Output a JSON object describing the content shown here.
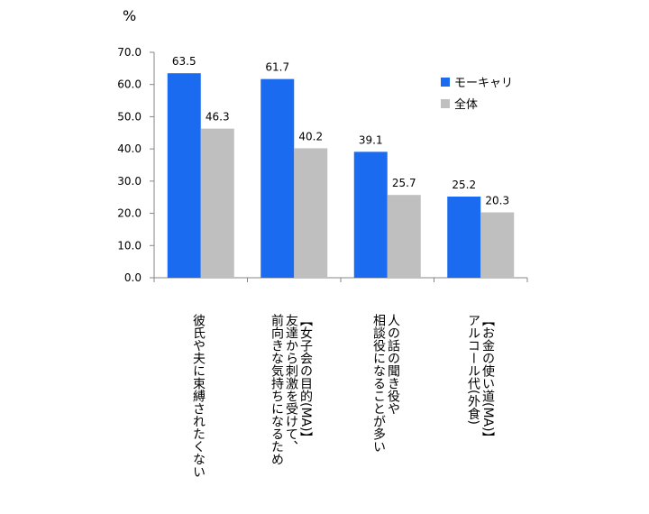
{
  "chart_data": {
    "type": "bar",
    "ylabel": "%",
    "ylim": [
      0,
      70
    ],
    "yticks": [
      "70.0",
      "60.0",
      "50.0",
      "40.0",
      "30.0",
      "20.0",
      "10.0",
      "0.0"
    ],
    "ytick_values": [
      70,
      60,
      50,
      40,
      30,
      20,
      10,
      0
    ],
    "categories": [
      "彼氏や夫に束縛されたくない",
      "【女子会の目的(MA)】\n友達から刺激を受けて、\n前向きな気持ちになるため",
      "人の話の聞き役や\n相談役になることが多い",
      "【お金の使い道(MA)】\nアルコール代(外食)"
    ],
    "series": [
      {
        "name": "モーキャリ",
        "color": "#1a6bf0",
        "values": [
          63.5,
          61.7,
          39.1,
          25.2
        ],
        "labels": [
          "63.5",
          "61.7",
          "39.1",
          "25.2"
        ]
      },
      {
        "name": "全体",
        "color": "#bfbfbf",
        "values": [
          46.3,
          40.2,
          25.7,
          20.3
        ],
        "labels": [
          "46.3",
          "40.2",
          "25.7",
          "20.3"
        ]
      }
    ],
    "legend_position": "top-right",
    "grid": false
  }
}
